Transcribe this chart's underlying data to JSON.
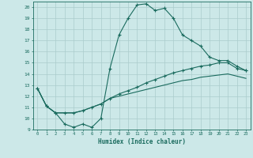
{
  "xlabel": "Humidex (Indice chaleur)",
  "xlim": [
    -0.5,
    23.5
  ],
  "ylim": [
    9,
    20.5
  ],
  "xticks": [
    0,
    1,
    2,
    3,
    4,
    5,
    6,
    7,
    8,
    9,
    10,
    11,
    12,
    13,
    14,
    15,
    16,
    17,
    18,
    19,
    20,
    21,
    22,
    23
  ],
  "yticks": [
    9,
    10,
    11,
    12,
    13,
    14,
    15,
    16,
    17,
    18,
    19,
    20
  ],
  "bg_color": "#cce8e8",
  "line_color": "#1a6b5e",
  "grid_color": "#aacccc",
  "curve1_x": [
    0,
    1,
    2,
    3,
    4,
    5,
    6,
    7,
    8,
    9,
    10,
    11,
    12,
    13,
    14,
    15,
    16,
    17,
    18,
    19,
    20,
    21,
    22,
    23
  ],
  "curve1_y": [
    12.7,
    11.1,
    10.5,
    9.5,
    9.2,
    9.5,
    9.2,
    10.0,
    14.5,
    17.5,
    19.0,
    20.2,
    20.3,
    19.7,
    19.9,
    19.0,
    17.5,
    17.0,
    16.5,
    15.5,
    15.2,
    15.2,
    14.7,
    14.3
  ],
  "curve2_x": [
    0,
    1,
    2,
    3,
    4,
    5,
    6,
    7,
    8,
    9,
    10,
    11,
    12,
    13,
    14,
    15,
    16,
    17,
    18,
    19,
    20,
    21,
    22,
    23
  ],
  "curve2_y": [
    12.7,
    11.1,
    10.5,
    10.5,
    10.5,
    10.7,
    11.0,
    11.3,
    11.8,
    12.2,
    12.5,
    12.8,
    13.2,
    13.5,
    13.8,
    14.1,
    14.3,
    14.5,
    14.7,
    14.8,
    15.0,
    15.0,
    14.5,
    14.3
  ],
  "curve3_x": [
    0,
    1,
    2,
    3,
    4,
    5,
    6,
    7,
    8,
    9,
    10,
    11,
    12,
    13,
    14,
    15,
    16,
    17,
    18,
    19,
    20,
    21,
    22,
    23
  ],
  "curve3_y": [
    12.7,
    11.1,
    10.5,
    10.5,
    10.5,
    10.7,
    11.0,
    11.3,
    11.8,
    12.0,
    12.2,
    12.4,
    12.6,
    12.8,
    13.0,
    13.2,
    13.4,
    13.5,
    13.7,
    13.8,
    13.9,
    14.0,
    13.8,
    13.6
  ]
}
